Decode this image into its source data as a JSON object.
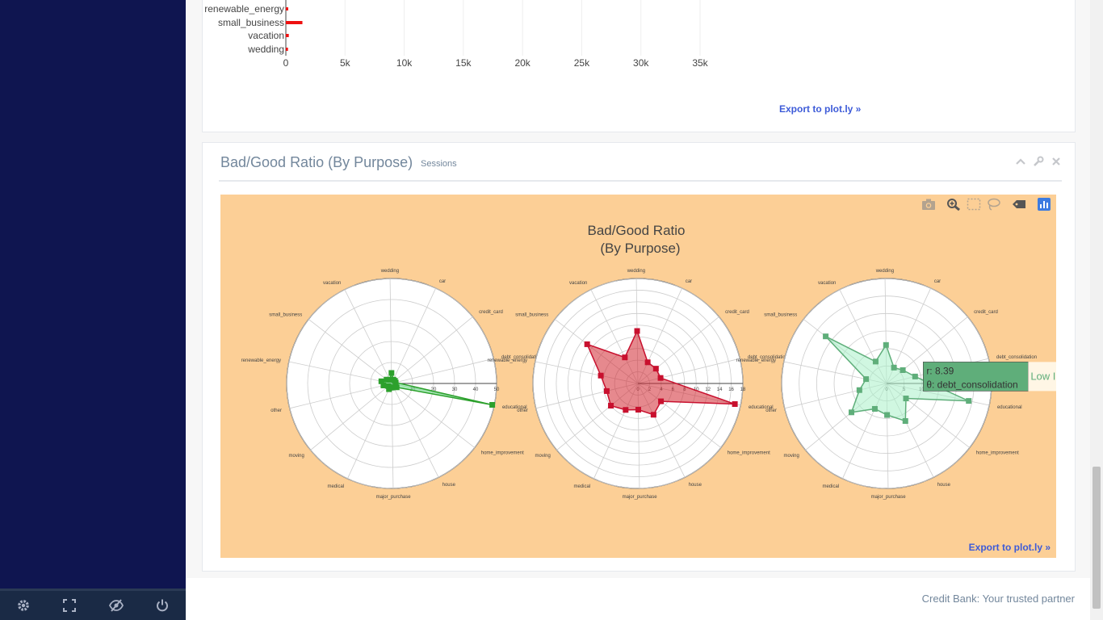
{
  "top_chart": {
    "categories": [
      "renewable_energy",
      "small_business",
      "vacation",
      "wedding"
    ],
    "values": [
      200,
      1400,
      250,
      180
    ],
    "xticks": [
      "0",
      "5k",
      "10k",
      "15k",
      "20k",
      "25k",
      "30k",
      "35k"
    ],
    "xmax": 35000,
    "export_label": "Export to plot.ly »"
  },
  "panel": {
    "title": "Bad/Good Ratio (By Purpose)",
    "subtitle": "Sessions",
    "export_label": "Export to plot.ly »",
    "tools": [
      "chevron-up-icon",
      "wrench-icon",
      "close-icon"
    ]
  },
  "plot": {
    "title_line1": "Bad/Good Ratio",
    "title_line2": "(By Purpose)",
    "modebar": [
      "camera-icon",
      "zoom-icon",
      "box-select-icon",
      "lasso-icon",
      "tag-icon",
      "plotly-logo-icon"
    ],
    "background": "#fccf96"
  },
  "chart_data": [
    {
      "type": "polar",
      "categories": [
        "educational",
        "home_improvement",
        "house",
        "major_purchase",
        "medical",
        "moving",
        "other",
        "renewable_energy",
        "small_business",
        "vacation",
        "wedding",
        "car",
        "credit_card",
        "debt_consolidation"
      ],
      "values": [
        49,
        3,
        2,
        2,
        3,
        2,
        4,
        5,
        3,
        2,
        5,
        2,
        2,
        2
      ],
      "radial_ticks": [
        "0",
        "10",
        "20",
        "30",
        "40",
        "50"
      ],
      "rmax": 50,
      "color": "#2ca02c",
      "fill": "rgba(100,220,130,0.55)"
    },
    {
      "type": "polar",
      "categories": [
        "educational",
        "home_improvement",
        "house",
        "major_purchase",
        "medical",
        "moving",
        "other",
        "renewable_energy",
        "small_business",
        "vacation",
        "wedding",
        "car",
        "credit_card",
        "debt_consolidation"
      ],
      "values": [
        17,
        5,
        6,
        4.5,
        5,
        6,
        5.5,
        6.5,
        11,
        5,
        9,
        4,
        4,
        4
      ],
      "radial_ticks": [
        "0",
        "2",
        "4",
        "6",
        "8",
        "10",
        "12",
        "14",
        "16",
        "18"
      ],
      "rmax": 18,
      "color": "#c8102e",
      "fill": "rgba(210,40,50,0.55)"
    },
    {
      "type": "polar",
      "name": "Low Income",
      "categories": [
        "educational",
        "home_improvement",
        "house",
        "major_purchase",
        "medical",
        "moving",
        "other",
        "renewable_energy",
        "small_business",
        "vacation",
        "wedding",
        "car",
        "credit_card",
        "debt_consolidation"
      ],
      "values": [
        24,
        7,
        12,
        9,
        8,
        13,
        8,
        6,
        22,
        7,
        11,
        5,
        6,
        8.39
      ],
      "radial_ticks": [
        "0",
        "5",
        "10",
        "15",
        "20",
        "25",
        "30"
      ],
      "rmax": 30,
      "color": "#5fae7a",
      "fill": "rgba(170,240,200,0.55)",
      "hover": {
        "r_label": "r: 8.39",
        "theta_label": "θ: debt_consolidation"
      }
    }
  ],
  "footer": {
    "text": "Credit Bank: Your trusted partner"
  },
  "sidebar_footer": [
    "gear-icon",
    "fullscreen-icon",
    "eye-slash-icon",
    "power-icon"
  ]
}
